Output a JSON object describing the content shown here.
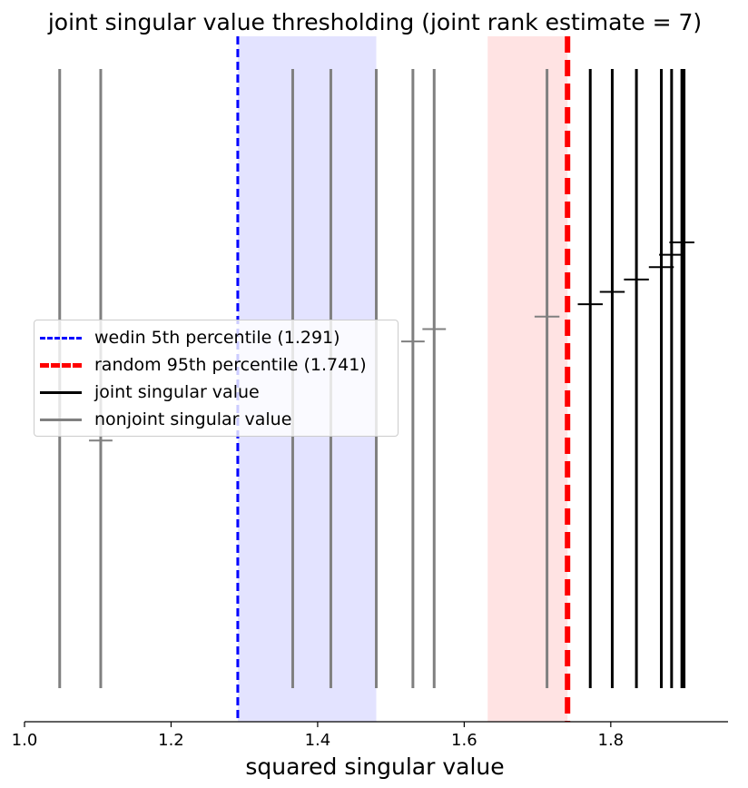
{
  "chart_data": {
    "type": "line",
    "title": "joint singular value thresholding (joint rank estimate = 7)",
    "xlabel": "squared singular value",
    "ylabel": "",
    "xlim": [
      1.0,
      1.96
    ],
    "xticks": [
      1.0,
      1.2,
      1.4,
      1.6,
      1.8
    ],
    "xtick_labels": [
      "1.0",
      "1.2",
      "1.4",
      "1.6",
      "1.8"
    ],
    "grid": false,
    "legend_position": "center-left",
    "shaded_regions": [
      {
        "x0": 1.291,
        "x1": 1.48,
        "color": "#e3e3ff"
      },
      {
        "x0": 1.632,
        "x1": 1.741,
        "color": "#ffe3e3"
      }
    ],
    "thresholds": [
      {
        "name": "wedin 5th percentile (1.291)",
        "x": 1.291,
        "color": "#0000ff",
        "style": "dashed-thin"
      },
      {
        "name": "random 95th percentile (1.741)",
        "x": 1.741,
        "color": "#ff0000",
        "style": "dashed-thick"
      }
    ],
    "series": [
      {
        "name": "joint singular value",
        "color": "#000000",
        "values": [
          1.772,
          1.802,
          1.835,
          1.869,
          1.883,
          1.897,
          1.9
        ]
      },
      {
        "name": "nonjoint singular value",
        "color": "#808080",
        "values": [
          1.048,
          1.104,
          1.366,
          1.418,
          1.48,
          1.53,
          1.559,
          1.713
        ]
      }
    ],
    "error_bars": [
      {
        "x": 1.104,
        "level": 0.4,
        "half_width": 0.016,
        "color": "#808080"
      },
      {
        "x": 1.53,
        "level": 0.56,
        "half_width": 0.016,
        "color": "#808080"
      },
      {
        "x": 1.559,
        "level": 0.58,
        "half_width": 0.016,
        "color": "#808080"
      },
      {
        "x": 1.713,
        "level": 0.6,
        "half_width": 0.017,
        "color": "#808080"
      },
      {
        "x": 1.772,
        "level": 0.62,
        "half_width": 0.017,
        "color": "#000000"
      },
      {
        "x": 1.802,
        "level": 0.64,
        "half_width": 0.017,
        "color": "#000000"
      },
      {
        "x": 1.835,
        "level": 0.66,
        "half_width": 0.017,
        "color": "#000000"
      },
      {
        "x": 1.869,
        "level": 0.68,
        "half_width": 0.017,
        "color": "#000000"
      },
      {
        "x": 1.883,
        "level": 0.7,
        "half_width": 0.017,
        "color": "#000000"
      },
      {
        "x": 1.897,
        "level": 0.72,
        "half_width": 0.017,
        "color": "#000000"
      }
    ]
  },
  "legend": [
    {
      "label": "wedin 5th percentile (1.291)",
      "color": "#0000ff",
      "style": "dashed-thin"
    },
    {
      "label": "random 95th percentile (1.741)",
      "color": "#ff0000",
      "style": "dashed-thick"
    },
    {
      "label": "joint singular value",
      "color": "#000000",
      "style": "solid"
    },
    {
      "label": "nonjoint singular value",
      "color": "#808080",
      "style": "solid"
    }
  ]
}
